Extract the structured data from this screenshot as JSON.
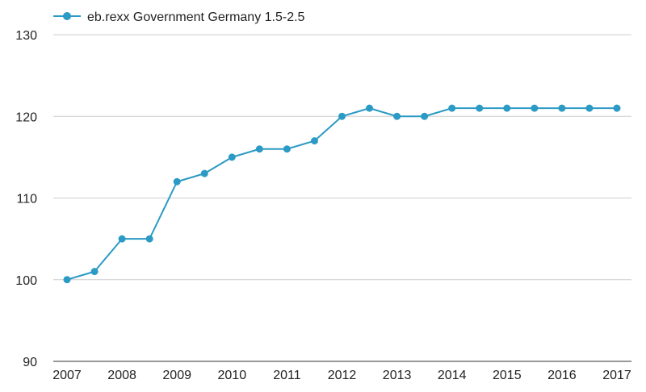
{
  "chart_data": {
    "type": "line",
    "title": "",
    "xlabel": "",
    "ylabel": "",
    "x": [
      2007,
      2007.5,
      2008,
      2008.5,
      2009,
      2009.5,
      2010,
      2010.5,
      2011,
      2011.5,
      2012,
      2012.5,
      2013,
      2013.5,
      2014,
      2014.5,
      2015,
      2015.5,
      2016,
      2016.5,
      2017
    ],
    "x_ticks": [
      "2007",
      "2008",
      "2009",
      "2010",
      "2011",
      "2012",
      "2013",
      "2014",
      "2015",
      "2016",
      "2017"
    ],
    "ylim": [
      90,
      130
    ],
    "y_ticks": [
      "90",
      "100",
      "110",
      "120",
      "130"
    ],
    "grid": true,
    "legend_position": "top-left",
    "series": [
      {
        "name": "eb.rexx Government Germany 1.5-2.5",
        "color": "#2b9ac4",
        "values": [
          100,
          101,
          105,
          105,
          112,
          113,
          115,
          116,
          116,
          117,
          120,
          121,
          120,
          120,
          121,
          121,
          121,
          121,
          121,
          121,
          121
        ]
      }
    ]
  }
}
